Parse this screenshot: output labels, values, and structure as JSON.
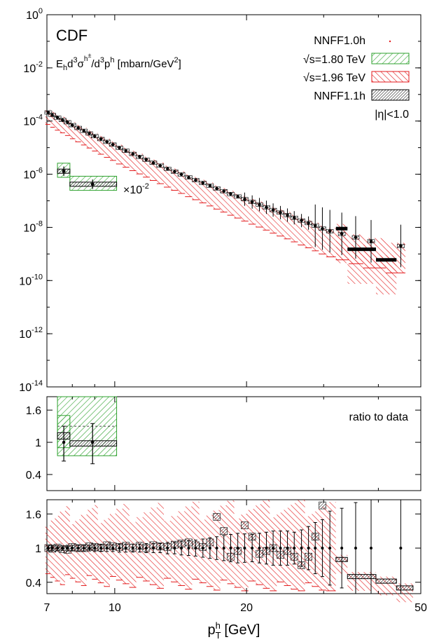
{
  "chart_data": {
    "type": "scatter",
    "experiment_label": "CDF",
    "y_quantity": {
      "base": "E",
      "sub": "h",
      "mid": "d",
      "sup1": "3",
      "sig": "σ",
      "supsup": "h",
      "pm": "±",
      "slash": "/d",
      "sup2": "3",
      "p": "p",
      "sup3": "h",
      "units": "[mbarn/GeV",
      "units_sup": "2",
      "close": "]"
    },
    "xlabel": {
      "p": "p",
      "sub": "T",
      "sup": "h",
      "units": "[GeV]"
    },
    "x_scale": "log",
    "xlim": [
      7,
      50
    ],
    "x_ticks": [
      "7",
      "10",
      "20",
      "50"
    ],
    "legend": {
      "placement": "top-right",
      "entries": [
        {
          "label": "NNFF1.0h",
          "style": "dot",
          "color": "#e31a1c"
        },
        {
          "label": "√s=1.80 TeV",
          "style": "hatch-green",
          "color": "#2ca02c"
        },
        {
          "label": "√s=1.96 TeV",
          "style": "hatch-red",
          "color": "#e31a1c"
        },
        {
          "label": "NNFF1.1h",
          "style": "hatch-black",
          "color": "#000000"
        }
      ],
      "cut": "|η|<1.0"
    },
    "scale_note": {
      "base": "×10",
      "exp": "-2"
    },
    "top_panel": {
      "y_scale": "log",
      "ylim": [
        1e-14,
        1
      ],
      "y_ticks": [
        {
          "base": "10",
          "exp": "0"
        },
        {
          "base": "10",
          "exp": "-2"
        },
        {
          "base": "10",
          "exp": "-4"
        },
        {
          "base": "10",
          "exp": "-6"
        },
        {
          "base": "10",
          "exp": "-8"
        },
        {
          "base": "10",
          "exp": "-10"
        },
        {
          "base": "10",
          "exp": "-12"
        },
        {
          "base": "10",
          "exp": "-14"
        }
      ],
      "series_180": {
        "bins": [
          [
            7.4,
            7.9
          ],
          [
            7.9,
            10.1
          ]
        ],
        "data": [
          {
            "x": 7.65,
            "y": 1.3e-06,
            "err": 0.3
          },
          {
            "x": 8.9,
            "y": 4.2e-07,
            "err": 0.3
          }
        ]
      },
      "series_196": {
        "data": [
          {
            "x": 7.05,
            "y": 0.00021
          },
          {
            "x": 7.2,
            "y": 0.00017
          },
          {
            "x": 7.4,
            "y": 0.000135
          },
          {
            "x": 7.6,
            "y": 0.00011
          },
          {
            "x": 7.8,
            "y": 9e-05
          },
          {
            "x": 8.0,
            "y": 7e-05
          },
          {
            "x": 8.25,
            "y": 5.5e-05
          },
          {
            "x": 8.5,
            "y": 4.3e-05
          },
          {
            "x": 8.75,
            "y": 3.4e-05
          },
          {
            "x": 9.0,
            "y": 2.7e-05
          },
          {
            "x": 9.3,
            "y": 2.1e-05
          },
          {
            "x": 9.6,
            "y": 1.65e-05
          },
          {
            "x": 9.9,
            "y": 1.3e-05
          },
          {
            "x": 10.25,
            "y": 9.8e-06
          },
          {
            "x": 10.6,
            "y": 7.6e-06
          },
          {
            "x": 11.0,
            "y": 5.8e-06
          },
          {
            "x": 11.4,
            "y": 4.5e-06
          },
          {
            "x": 11.8,
            "y": 3.5e-06
          },
          {
            "x": 12.25,
            "y": 2.7e-06
          },
          {
            "x": 12.7,
            "y": 2.1e-06
          },
          {
            "x": 13.2,
            "y": 1.6e-06
          },
          {
            "x": 13.7,
            "y": 1.25e-06
          },
          {
            "x": 14.2,
            "y": 9.8e-07
          },
          {
            "x": 14.75,
            "y": 7.6e-07
          },
          {
            "x": 15.3,
            "y": 6e-07
          },
          {
            "x": 15.9,
            "y": 4.7e-07
          },
          {
            "x": 16.5,
            "y": 3.7e-07
          },
          {
            "x": 17.1,
            "y": 2.9e-07
          },
          {
            "x": 17.75,
            "y": 2.3e-07
          },
          {
            "x": 18.4,
            "y": 1.8e-07
          },
          {
            "x": 19.1,
            "y": 1.45e-07
          },
          {
            "x": 19.8,
            "y": 1.15e-07
          },
          {
            "x": 20.6,
            "y": 9e-08
          },
          {
            "x": 21.4,
            "y": 7.2e-08
          },
          {
            "x": 22.2,
            "y": 5.7e-08
          },
          {
            "x": 23.0,
            "y": 4.5e-08
          },
          {
            "x": 23.9,
            "y": 3.6e-08
          },
          {
            "x": 24.8,
            "y": 2.9e-08
          },
          {
            "x": 25.7,
            "y": 2.3e-08
          },
          {
            "x": 26.7,
            "y": 1.8e-08
          },
          {
            "x": 27.7,
            "y": 1.45e-08
          },
          {
            "x": 28.7,
            "y": 1.15e-08
          },
          {
            "x": 29.8,
            "y": 9e-09
          },
          {
            "x": 31.0,
            "y": 7.2e-09
          },
          {
            "x": 33.0,
            "y": 5.7e-09
          },
          {
            "x": 35.5,
            "y": 4.2e-09
          },
          {
            "x": 38.5,
            "y": 3e-09
          },
          {
            "x": 45.0,
            "y": 2e-09
          }
        ],
        "wide_bins": [
          {
            "lo": 32.0,
            "hi": 34.0,
            "y": 9e-09
          },
          {
            "lo": 34.0,
            "hi": 39.5,
            "y": 1.5e-09
          },
          {
            "lo": 39.5,
            "hi": 44.0,
            "y": 6e-10
          }
        ]
      }
    },
    "middle_panel": {
      "label": "ratio to data",
      "ylim": [
        0.0,
        1.9
      ],
      "y_ticks": [
        "1.6",
        "1",
        "0.4"
      ],
      "points": [
        {
          "x": 7.65,
          "y": 1.0,
          "lo": 0.65,
          "hi": 1.3
        },
        {
          "x": 8.9,
          "y": 1.0,
          "lo": 0.6,
          "hi": 1.35
        }
      ],
      "nnff11": [
        {
          "lo": 7.4,
          "hi": 7.9,
          "y": 1.12,
          "h": 0.12
        },
        {
          "lo": 7.9,
          "hi": 10.1,
          "y": 0.98,
          "h": 0.1
        }
      ],
      "nnff10_band": {
        "lo": 7.4,
        "hi": 10.1,
        "ymin": 0.75,
        "ymax": 1.85,
        "central": 1.3
      },
      "nnff10_left": {
        "lo": 7.4,
        "hi": 7.9,
        "ymin": 0.9,
        "ymax": 1.5
      }
    },
    "bottom_panel": {
      "ylim": [
        0.2,
        1.85
      ],
      "y_ticks": [
        "1.6",
        "1",
        "0.4"
      ],
      "points": [
        {
          "x": 7.05,
          "lo": 0.96,
          "hi": 1.04
        },
        {
          "x": 7.2,
          "lo": 0.96,
          "hi": 1.04
        },
        {
          "x": 7.4,
          "lo": 0.96,
          "hi": 1.04
        },
        {
          "x": 7.6,
          "lo": 0.96,
          "hi": 1.04
        },
        {
          "x": 7.8,
          "lo": 0.95,
          "hi": 1.05
        },
        {
          "x": 8.0,
          "lo": 0.95,
          "hi": 1.05
        },
        {
          "x": 8.25,
          "lo": 0.95,
          "hi": 1.05
        },
        {
          "x": 8.5,
          "lo": 0.95,
          "hi": 1.05
        },
        {
          "x": 8.75,
          "lo": 0.95,
          "hi": 1.05
        },
        {
          "x": 9.0,
          "lo": 0.94,
          "hi": 1.06
        },
        {
          "x": 9.3,
          "lo": 0.94,
          "hi": 1.06
        },
        {
          "x": 9.6,
          "lo": 0.94,
          "hi": 1.06
        },
        {
          "x": 9.9,
          "lo": 0.94,
          "hi": 1.06
        },
        {
          "x": 10.25,
          "lo": 0.93,
          "hi": 1.07
        },
        {
          "x": 10.6,
          "lo": 0.93,
          "hi": 1.07
        },
        {
          "x": 11.0,
          "lo": 0.93,
          "hi": 1.07
        },
        {
          "x": 11.4,
          "lo": 0.93,
          "hi": 1.07
        },
        {
          "x": 11.8,
          "lo": 0.92,
          "hi": 1.08
        },
        {
          "x": 12.25,
          "lo": 0.92,
          "hi": 1.08
        },
        {
          "x": 12.7,
          "lo": 0.92,
          "hi": 1.08
        },
        {
          "x": 13.2,
          "lo": 0.9,
          "hi": 1.1
        },
        {
          "x": 13.7,
          "lo": 0.9,
          "hi": 1.1
        },
        {
          "x": 14.2,
          "lo": 0.88,
          "hi": 1.12
        },
        {
          "x": 14.75,
          "lo": 0.87,
          "hi": 1.13
        },
        {
          "x": 15.3,
          "lo": 0.86,
          "hi": 1.14
        },
        {
          "x": 15.9,
          "lo": 0.84,
          "hi": 1.16
        },
        {
          "x": 16.5,
          "lo": 0.82,
          "hi": 1.18
        },
        {
          "x": 17.1,
          "lo": 0.8,
          "hi": 1.2
        },
        {
          "x": 17.75,
          "lo": 0.78,
          "hi": 1.22
        },
        {
          "x": 18.4,
          "lo": 0.76,
          "hi": 1.24
        },
        {
          "x": 19.1,
          "lo": 0.74,
          "hi": 1.26
        },
        {
          "x": 19.8,
          "lo": 0.75,
          "hi": 1.25
        },
        {
          "x": 20.6,
          "lo": 0.76,
          "hi": 1.24
        },
        {
          "x": 21.4,
          "lo": 0.74,
          "hi": 1.26
        },
        {
          "x": 22.2,
          "lo": 0.72,
          "hi": 1.28
        },
        {
          "x": 23.0,
          "lo": 0.7,
          "hi": 1.3
        },
        {
          "x": 23.9,
          "lo": 0.7,
          "hi": 1.3
        },
        {
          "x": 24.8,
          "lo": 0.7,
          "hi": 1.3
        },
        {
          "x": 25.7,
          "lo": 0.72,
          "hi": 1.28
        },
        {
          "x": 26.7,
          "lo": 0.68,
          "hi": 1.32
        },
        {
          "x": 27.7,
          "lo": 0.62,
          "hi": 1.38
        },
        {
          "x": 28.7,
          "lo": 0.55,
          "hi": 1.45
        },
        {
          "x": 29.8,
          "lo": 0.5,
          "hi": 1.5
        },
        {
          "x": 31.0,
          "lo": 0.35,
          "hi": 1.65
        },
        {
          "x": 33.0,
          "lo": 0.3,
          "hi": 1.7
        },
        {
          "x": 35.5,
          "lo": 0.2,
          "hi": 1.8
        },
        {
          "x": 38.5,
          "lo": 0.2,
          "hi": 1.85
        },
        {
          "x": 45.0,
          "lo": 0.2,
          "hi": 1.85
        }
      ],
      "nnff11_boxes": [
        {
          "x": 7.05,
          "y": 1.0
        },
        {
          "x": 7.2,
          "y": 0.99
        },
        {
          "x": 7.4,
          "y": 1.01
        },
        {
          "x": 7.6,
          "y": 0.98
        },
        {
          "x": 7.8,
          "y": 0.97
        },
        {
          "x": 8.0,
          "y": 1.02
        },
        {
          "x": 8.25,
          "y": 1.0
        },
        {
          "x": 8.5,
          "y": 1.0
        },
        {
          "x": 8.75,
          "y": 1.03
        },
        {
          "x": 9.0,
          "y": 1.02
        },
        {
          "x": 9.3,
          "y": 1.01
        },
        {
          "x": 9.6,
          "y": 1.05
        },
        {
          "x": 9.9,
          "y": 1.03
        },
        {
          "x": 10.25,
          "y": 1.02
        },
        {
          "x": 10.6,
          "y": 1.04
        },
        {
          "x": 11.0,
          "y": 1.01
        },
        {
          "x": 11.4,
          "y": 1.04
        },
        {
          "x": 11.8,
          "y": 1.0
        },
        {
          "x": 12.25,
          "y": 1.05
        },
        {
          "x": 12.7,
          "y": 1.03
        },
        {
          "x": 13.2,
          "y": 1.02
        },
        {
          "x": 13.7,
          "y": 1.06
        },
        {
          "x": 14.2,
          "y": 1.08
        },
        {
          "x": 14.75,
          "y": 1.1
        },
        {
          "x": 15.3,
          "y": 1.05
        },
        {
          "x": 15.9,
          "y": 1.02
        },
        {
          "x": 16.5,
          "y": 1.1
        },
        {
          "x": 17.1,
          "y": 1.55
        },
        {
          "x": 17.75,
          "y": 1.3
        },
        {
          "x": 18.4,
          "y": 0.85
        },
        {
          "x": 19.1,
          "y": 0.95
        },
        {
          "x": 19.8,
          "y": 1.4
        },
        {
          "x": 20.6,
          "y": 1.2
        },
        {
          "x": 21.4,
          "y": 0.9
        },
        {
          "x": 22.2,
          "y": 0.95
        },
        {
          "x": 23.0,
          "y": 1.0
        },
        {
          "x": 23.9,
          "y": 0.88
        },
        {
          "x": 24.8,
          "y": 0.95
        },
        {
          "x": 25.7,
          "y": 0.85
        },
        {
          "x": 26.7,
          "y": 0.7
        },
        {
          "x": 27.7,
          "y": 0.85
        },
        {
          "x": 28.7,
          "y": 1.2
        },
        {
          "x": 29.8,
          "y": 1.75
        }
      ],
      "wide_bins": [
        {
          "lo": 32.0,
          "hi": 34.0,
          "y": 0.8
        },
        {
          "lo": 34.0,
          "hi": 39.5,
          "y": 0.5
        },
        {
          "lo": 39.5,
          "hi": 44.0,
          "y": 0.42
        },
        {
          "lo": 44.0,
          "hi": 48.0,
          "y": 0.3
        }
      ]
    }
  }
}
